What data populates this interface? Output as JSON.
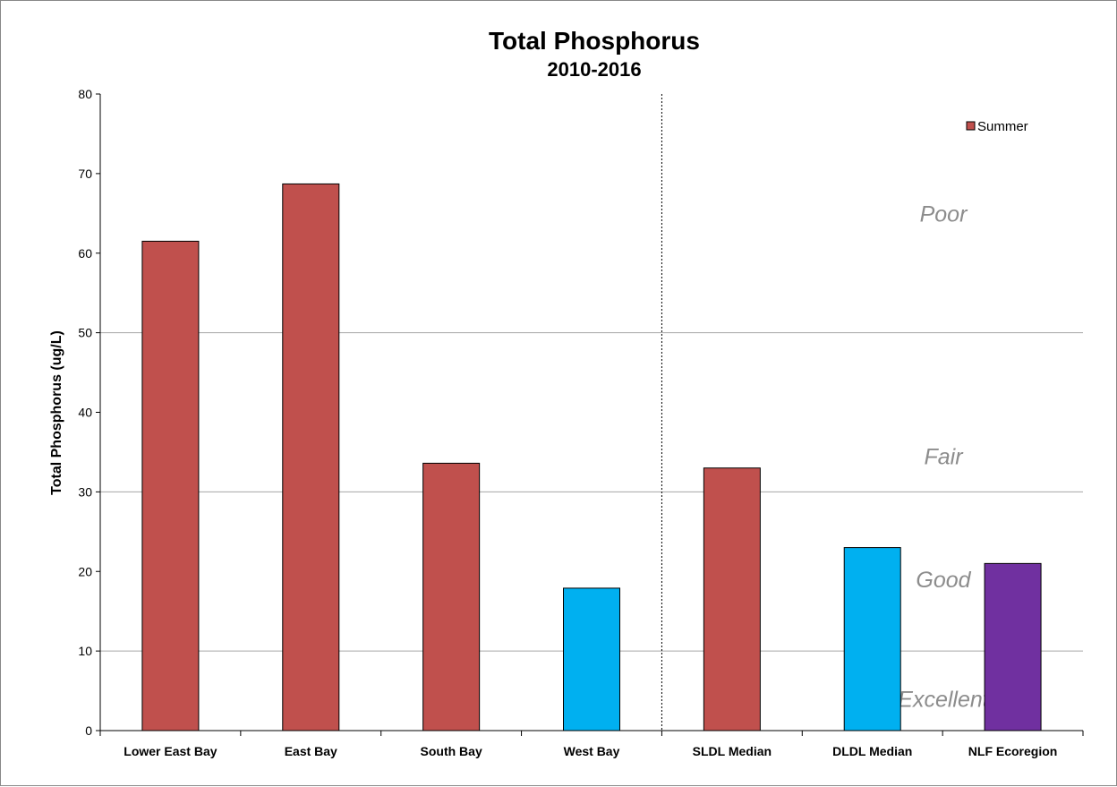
{
  "chart_data": {
    "type": "bar",
    "title": "Total Phosphorus",
    "subtitle": "2010-2016",
    "xlabel": "",
    "ylabel": "Total Phosphorus (ug/L)",
    "ylim": [
      0,
      80
    ],
    "yticks": [
      0,
      10,
      20,
      30,
      40,
      50,
      60,
      70,
      80
    ],
    "gridlines": [
      10,
      30,
      50
    ],
    "grid": true,
    "categories": [
      "Lower East Bay",
      "East Bay",
      "South Bay",
      "West Bay",
      "SLDL Median",
      "DLDL Median",
      "NLF Ecoregion"
    ],
    "values": [
      61.5,
      68.7,
      33.6,
      17.9,
      33.0,
      23.0,
      21.0
    ],
    "bar_colors": [
      "#c0504d",
      "#c0504d",
      "#c0504d",
      "#00b0f0",
      "#c0504d",
      "#00b0f0",
      "#7030a0"
    ],
    "separator_after_index": 3,
    "legend": {
      "placement": "top-right",
      "entries": [
        {
          "name": "Summer",
          "color": "#c0504d"
        }
      ]
    },
    "zones": [
      {
        "label": "Poor",
        "y": 65
      },
      {
        "label": "Fair",
        "y": 34.5
      },
      {
        "label": "Good",
        "y": 19
      },
      {
        "label": "Excellent",
        "y": 4
      }
    ]
  }
}
